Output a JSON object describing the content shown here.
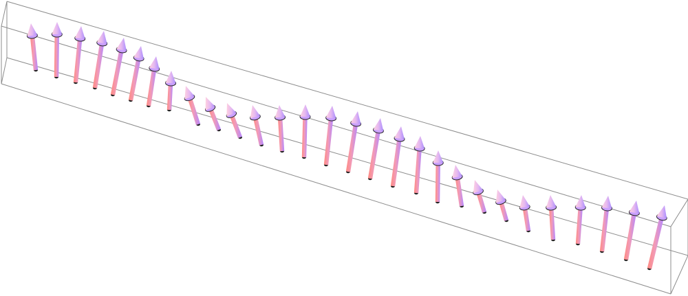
{
  "scene": {
    "type": "3d-vector-field",
    "background": "#ffffff",
    "box_color": "#8c8c8c",
    "shaft_gradient": [
      "#ff7f7f",
      "#c97fff"
    ],
    "cone_gradient": [
      "#ffc0d8",
      "#b9a6ff"
    ],
    "arrow_count": 30
  }
}
